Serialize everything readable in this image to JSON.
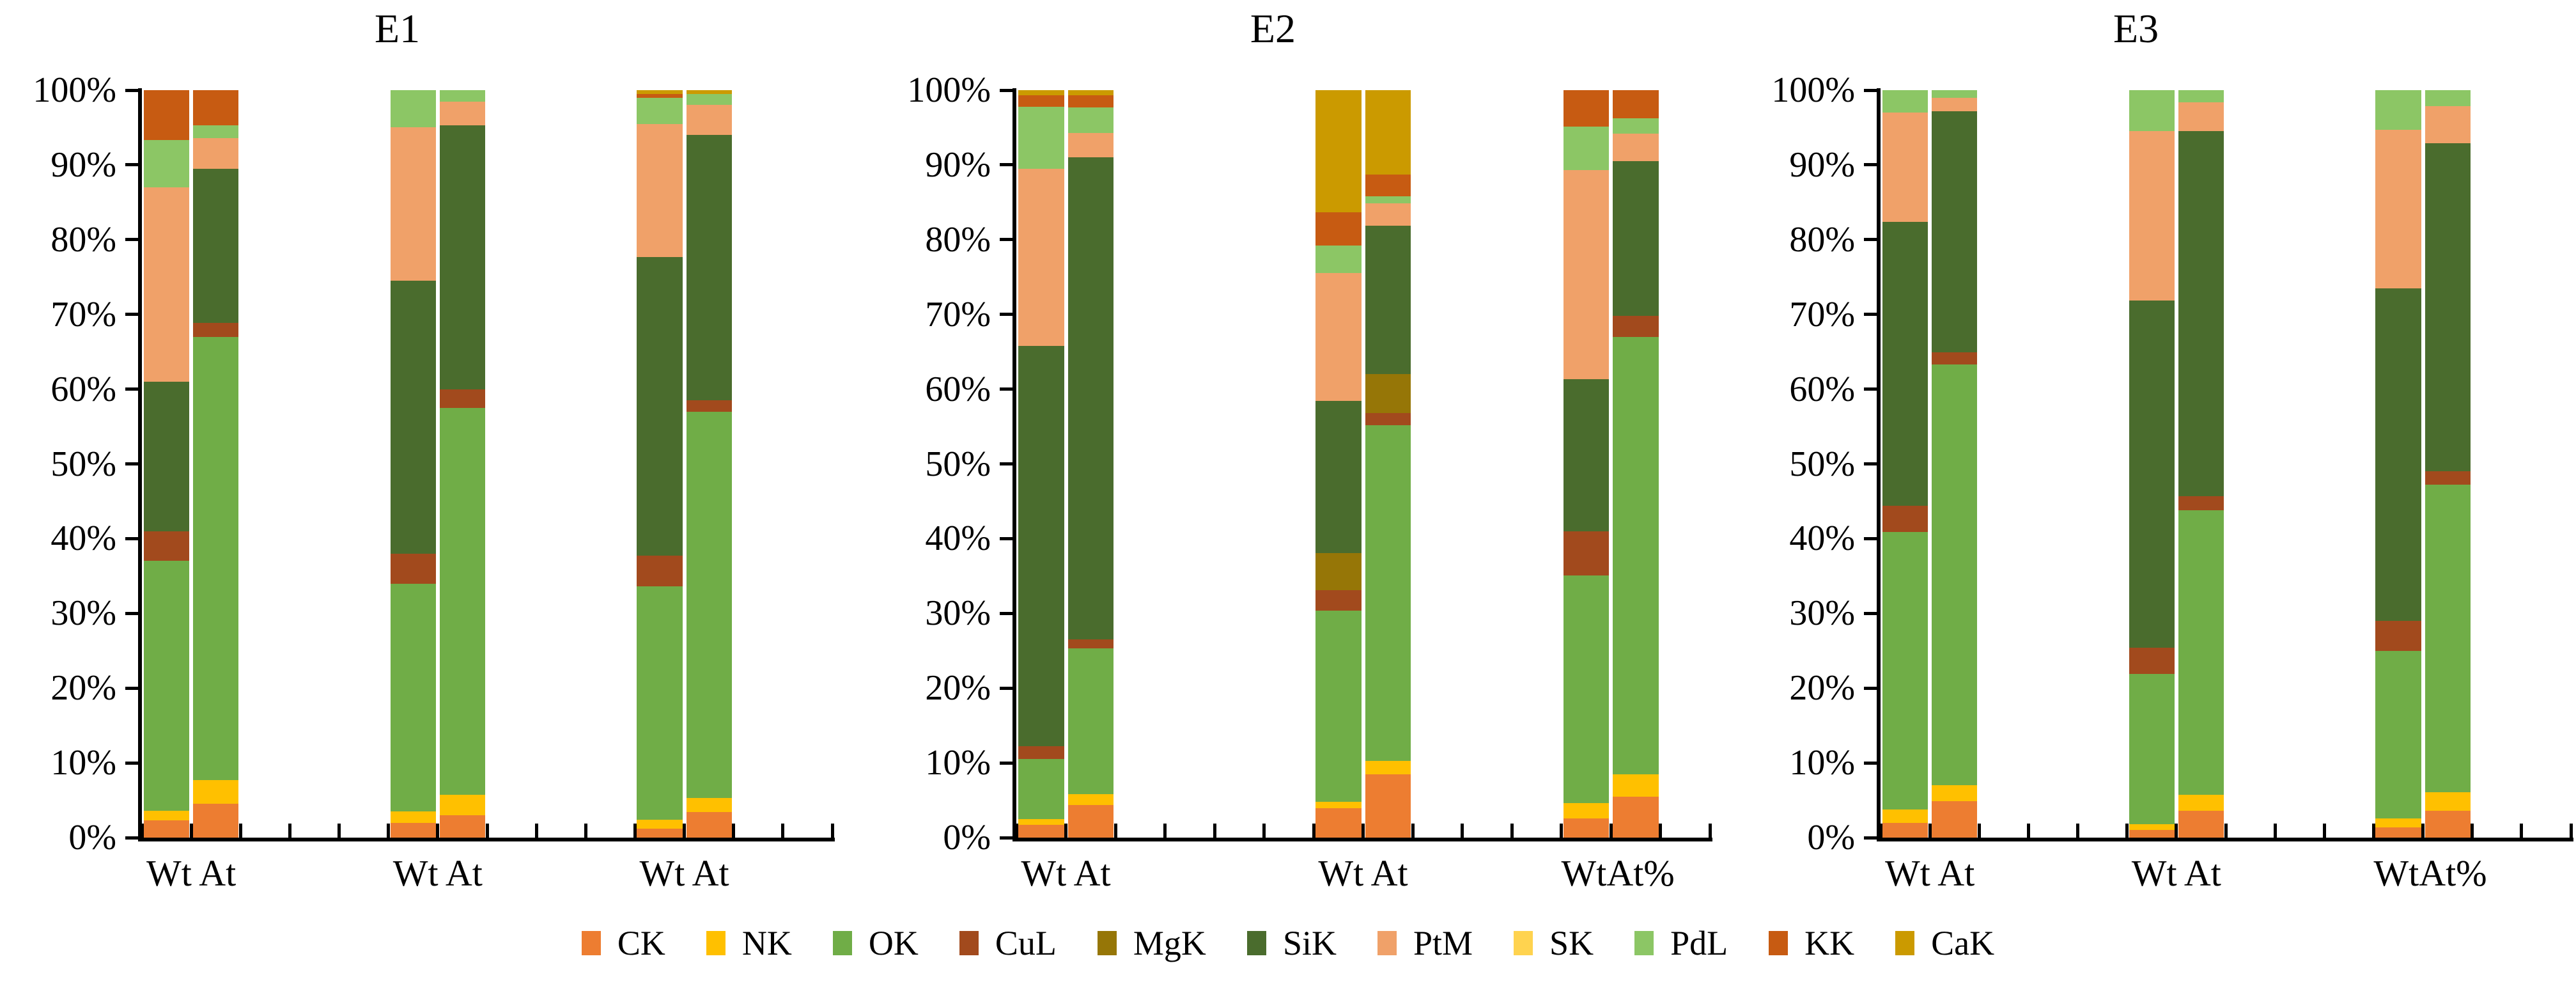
{
  "y_axis_labels": [
    "0%",
    "10%",
    "20%",
    "30%",
    "40%",
    "50%",
    "60%",
    "70%",
    "80%",
    "90%",
    "100%"
  ],
  "series": [
    {
      "name": "CK",
      "color": "#ED7D31"
    },
    {
      "name": "NK",
      "color": "#FFC000"
    },
    {
      "name": "OK",
      "color": "#70AD47"
    },
    {
      "name": "CuL",
      "color": "#A24A1D"
    },
    {
      "name": "MgK",
      "color": "#967607"
    },
    {
      "name": "SiK",
      "color": "#4A6C2D"
    },
    {
      "name": "PtM",
      "color": "#F0A169"
    },
    {
      "name": "SK",
      "color": "#FFD34F"
    },
    {
      "name": "PdL",
      "color": "#8CC665"
    },
    {
      "name": "KK",
      "color": "#C75B12"
    },
    {
      "name": "CaK",
      "color": "#CB9A00"
    }
  ],
  "chart_data": [
    {
      "type": "bar",
      "stacked": true,
      "title": "E1",
      "ylim": [
        0,
        100
      ],
      "grid": false,
      "legend_position": "bottom",
      "series_names": [
        "CK",
        "NK",
        "OK",
        "CuL",
        "MgK",
        "SiK",
        "PtM",
        "SK",
        "PdL",
        "KK",
        "CaK"
      ],
      "groups": [
        {
          "label": "Wt At",
          "bars": [
            {
              "name": "Wt",
              "values": [
                2.3,
                1.3,
                33.4,
                4.0,
                0,
                20.0,
                26.0,
                0,
                6.3,
                6.7,
                0
              ]
            },
            {
              "name": "At",
              "values": [
                4.5,
                3.2,
                59.3,
                1.9,
                0,
                20.6,
                4.1,
                0,
                1.7,
                4.7,
                0
              ]
            }
          ]
        },
        {
          "label": "Wt At",
          "bars": [
            {
              "name": "Wt",
              "values": [
                2.0,
                1.5,
                30.5,
                4.0,
                0,
                36.5,
                20.5,
                0,
                5.0,
                0,
                0
              ]
            },
            {
              "name": "At",
              "values": [
                3.0,
                2.7,
                51.8,
                2.5,
                0,
                35.3,
                3.2,
                0,
                1.5,
                0,
                0
              ]
            }
          ]
        },
        {
          "label": "Wt At",
          "bars": [
            {
              "name": "Wt",
              "values": [
                1.2,
                1.2,
                31.2,
                4.1,
                0,
                40.0,
                17.8,
                0,
                3.5,
                0.5,
                0.5
              ]
            },
            {
              "name": "At",
              "values": [
                3.4,
                1.9,
                51.7,
                1.5,
                0,
                35.5,
                4.0,
                0,
                1.5,
                0,
                0.5
              ]
            }
          ]
        }
      ]
    },
    {
      "type": "bar",
      "stacked": true,
      "title": "E2",
      "ylim": [
        0,
        100
      ],
      "grid": false,
      "legend_position": "bottom",
      "series_names": [
        "CK",
        "NK",
        "OK",
        "CuL",
        "MgK",
        "SiK",
        "PtM",
        "SK",
        "PdL",
        "KK",
        "CaK"
      ],
      "groups": [
        {
          "label": "Wt At",
          "bars": [
            {
              "name": "Wt",
              "values": [
                1.7,
                0.8,
                8.0,
                1.7,
                0,
                53.6,
                23.7,
                0,
                8.3,
                1.5,
                0.7
              ]
            },
            {
              "name": "At",
              "values": [
                4.4,
                1.4,
                19.5,
                1.2,
                0,
                64.5,
                3.3,
                0,
                3.4,
                1.6,
                0.7
              ]
            }
          ]
        },
        {
          "label": "Wt At",
          "bars": [
            {
              "name": "Wt",
              "values": [
                3.9,
                0.9,
                25.6,
                2.7,
                5.0,
                20.3,
                17.1,
                0,
                3.7,
                4.5,
                16.3
              ]
            },
            {
              "name": "At",
              "values": [
                8.5,
                1.8,
                44.9,
                1.6,
                5.2,
                19.9,
                3.0,
                0,
                0.9,
                2.9,
                11.3
              ]
            }
          ]
        },
        {
          "label": "WtAt%",
          "bars": [
            {
              "name": "Wt",
              "values": [
                2.6,
                2.0,
                30.5,
                5.9,
                0,
                20.3,
                28.0,
                0,
                5.8,
                4.9,
                0
              ]
            },
            {
              "name": "At",
              "values": [
                5.5,
                3.0,
                58.5,
                2.8,
                0,
                20.7,
                3.7,
                0,
                2.0,
                3.8,
                0
              ]
            }
          ]
        }
      ]
    },
    {
      "type": "bar",
      "stacked": true,
      "title": "E3",
      "ylim": [
        0,
        100
      ],
      "grid": false,
      "legend_position": "bottom",
      "series_names": [
        "CK",
        "NK",
        "OK",
        "CuL",
        "MgK",
        "SiK",
        "PtM",
        "SK",
        "PdL",
        "KK",
        "CaK"
      ],
      "groups": [
        {
          "label": "Wt At",
          "bars": [
            {
              "name": "Wt",
              "values": [
                2.0,
                1.8,
                37.1,
                3.5,
                0,
                38.0,
                14.6,
                0,
                3.0,
                0,
                0
              ]
            },
            {
              "name": "At",
              "values": [
                4.9,
                2.1,
                56.3,
                1.6,
                0,
                32.3,
                1.8,
                0,
                1.0,
                0,
                0
              ]
            }
          ]
        },
        {
          "label": "Wt At",
          "bars": [
            {
              "name": "Wt",
              "values": [
                1.0,
                0.8,
                20.1,
                3.5,
                0,
                46.5,
                22.6,
                0,
                5.5,
                0,
                0
              ]
            },
            {
              "name": "At",
              "values": [
                3.6,
                2.1,
                38.1,
                1.9,
                0,
                48.8,
                3.9,
                0,
                1.6,
                0,
                0
              ]
            }
          ]
        },
        {
          "label": "WtAt%",
          "bars": [
            {
              "name": "Wt",
              "values": [
                1.4,
                1.2,
                22.4,
                4.0,
                0,
                44.5,
                21.2,
                0,
                5.3,
                0,
                0
              ]
            },
            {
              "name": "At",
              "values": [
                3.6,
                2.5,
                41.1,
                1.8,
                0,
                43.9,
                5.0,
                0,
                2.1,
                0,
                0
              ]
            }
          ]
        }
      ]
    }
  ]
}
